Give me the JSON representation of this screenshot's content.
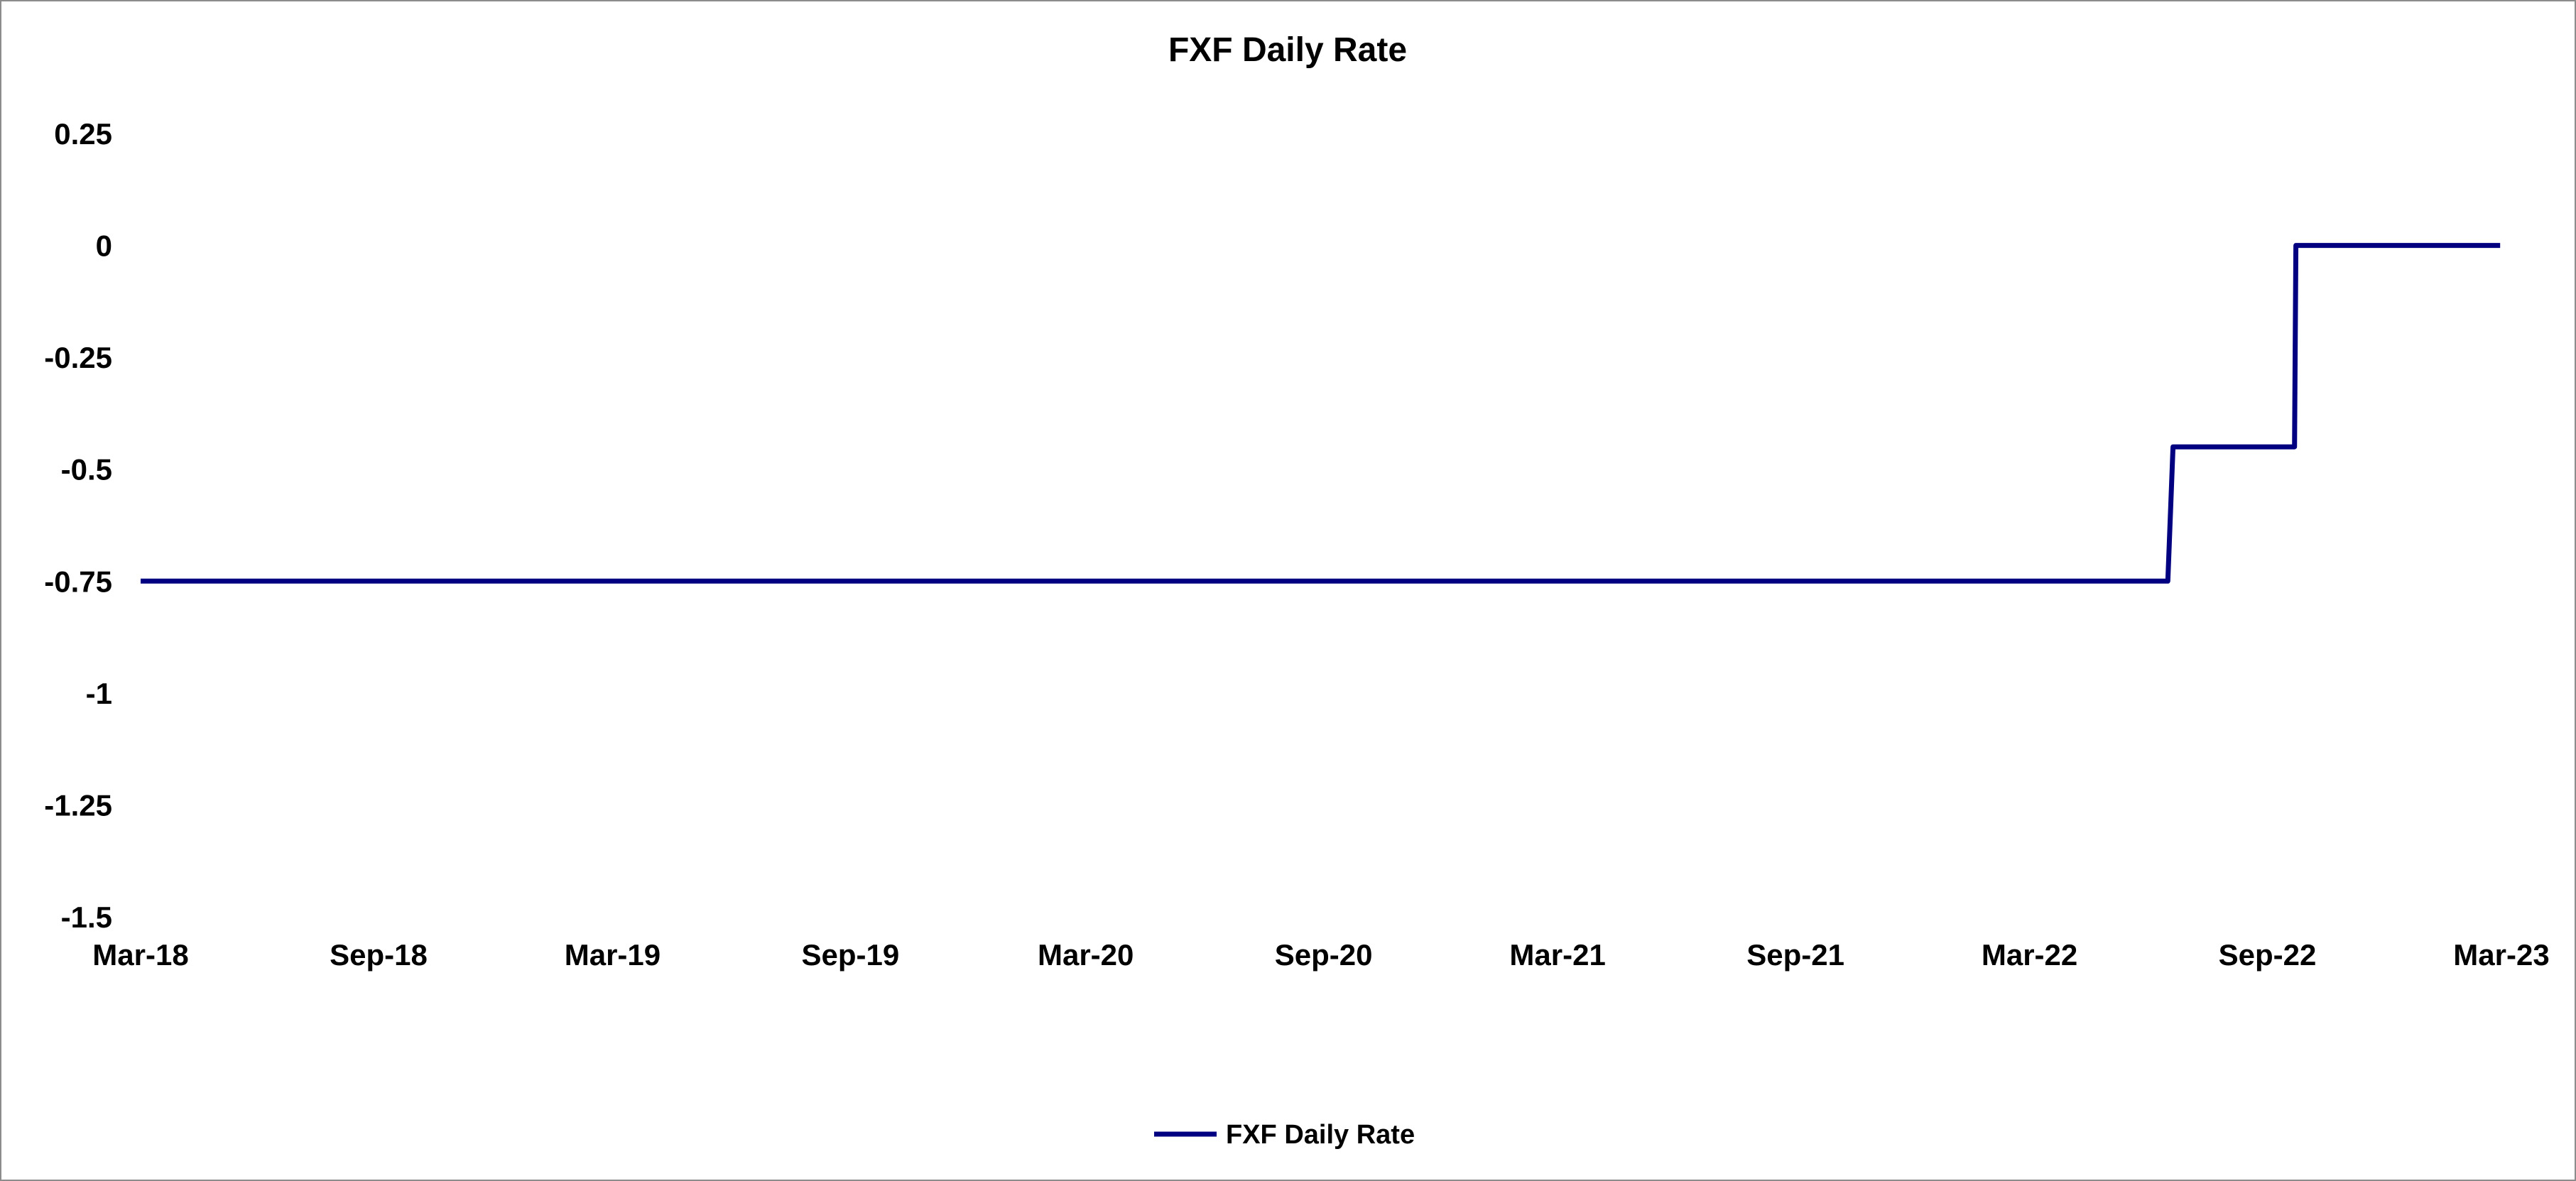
{
  "chart_data": {
    "type": "line",
    "title": "FXF Daily Rate",
    "xlabel": "",
    "ylabel": "",
    "x_tick_labels": [
      "Mar-18",
      "Sep-18",
      "Mar-19",
      "Sep-19",
      "Mar-20",
      "Sep-20",
      "Mar-21",
      "Sep-21",
      "Mar-22",
      "Sep-22",
      "Mar-23"
    ],
    "x_tick_dates": [
      "2018-03-01",
      "2018-09-01",
      "2019-03-01",
      "2019-09-01",
      "2020-03-01",
      "2020-09-01",
      "2021-03-01",
      "2021-09-01",
      "2022-03-01",
      "2022-09-01",
      "2023-03-01"
    ],
    "xlim": [
      "2018-03-01",
      "2023-03-01"
    ],
    "y_tick_labels": [
      "0.25",
      "0",
      "-0.25",
      "-0.5",
      "-0.75",
      "-1",
      "-1.25",
      "-1.5"
    ],
    "y_tick_values": [
      0.25,
      0,
      -0.25,
      -0.5,
      -0.75,
      -1,
      -1.25,
      -1.5
    ],
    "ylim": [
      -1.5,
      0.25
    ],
    "grid": false,
    "legend_position": "bottom",
    "series": [
      {
        "name": "FXF Daily Rate",
        "color": "#000080",
        "x": [
          "2018-03-01",
          "2022-06-16",
          "2022-06-20",
          "2022-09-22",
          "2022-09-23",
          "2023-02-28"
        ],
        "y": [
          -0.75,
          -0.75,
          -0.45,
          -0.45,
          0,
          0
        ]
      }
    ]
  }
}
